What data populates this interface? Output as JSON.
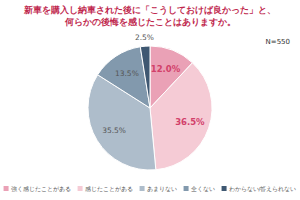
{
  "chart_data": {
    "type": "pie",
    "title": [
      "新車を購入し納車された後に「こうしておけば良かった」と、",
      "何らかの後悔を感じたことはありますか。"
    ],
    "annotations": [
      "N=550"
    ],
    "categories": [
      "強く感じたことがある",
      "感じたことがある",
      "あまりない",
      "全くない",
      "わからない/答えられない"
    ],
    "values": [
      12.0,
      36.5,
      35.5,
      13.5,
      2.5
    ],
    "value_labels": [
      "12.0%",
      "36.5%",
      "35.5%",
      "13.5%",
      "2.5%"
    ],
    "colors": [
      "#eaa1b6",
      "#f5cbd5",
      "#aebdcb",
      "#8299ad",
      "#3f5872"
    ],
    "data_labels": true,
    "legend": "bottom"
  }
}
